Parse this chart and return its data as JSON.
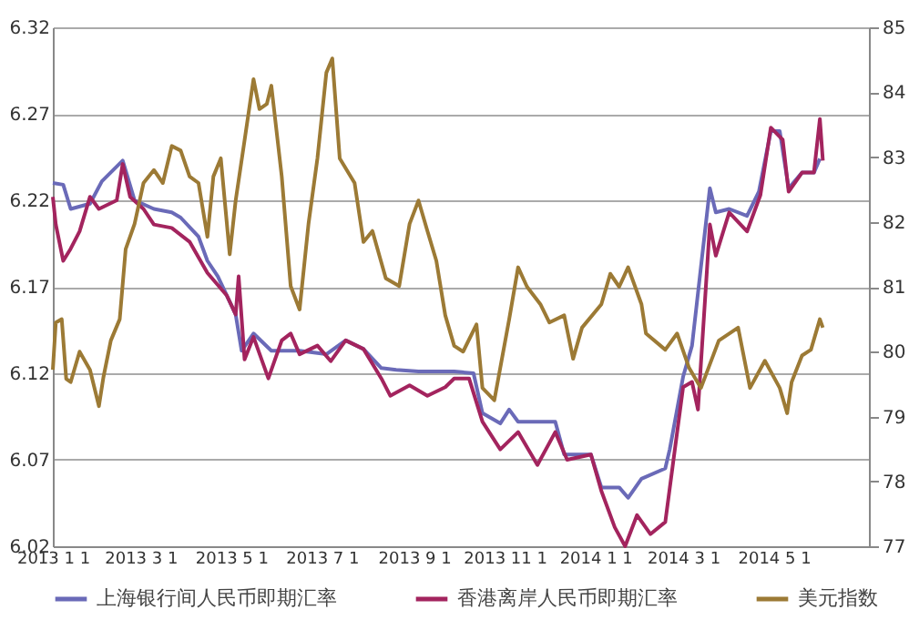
{
  "chart_data": {
    "type": "line",
    "xlim": [
      "2013-01-01",
      "2014-07-04"
    ],
    "xticks": [
      {
        "value": "2013-01-01",
        "label": "2013 1 1"
      },
      {
        "value": "2013-03-01",
        "label": "2013 3 1"
      },
      {
        "value": "2013-05-01",
        "label": "2013 5 1"
      },
      {
        "value": "2013-07-01",
        "label": "2013 7 1"
      },
      {
        "value": "2013-09-01",
        "label": "2013 9 1"
      },
      {
        "value": "2013-11-01",
        "label": "2013 11 1"
      },
      {
        "value": "2014-01-01",
        "label": "2014 1 1"
      },
      {
        "value": "2014-03-01",
        "label": "2014 3 1"
      },
      {
        "value": "2014-05-01",
        "label": "2014 5 1"
      }
    ],
    "ylim": [
      6.02,
      6.32
    ],
    "yticks": [
      6.02,
      6.07,
      6.12,
      6.17,
      6.22,
      6.27,
      6.32
    ],
    "y2lim": [
      77,
      85
    ],
    "y2ticks": [
      77,
      78,
      79,
      80,
      81,
      82,
      83,
      84,
      85
    ],
    "grid": "y",
    "legend": "bottom",
    "line_style": "solid",
    "marker": "none",
    "series": [
      {
        "name": "上海银行间人民币即期汇率",
        "color": "#6a6ab8",
        "x": [
          "2013-01-01",
          "2013-01-08",
          "2013-01-13",
          "2013-01-26",
          "2013-02-03",
          "2013-02-17",
          "2013-02-25",
          "2013-03-10",
          "2013-03-22",
          "2013-03-28",
          "2013-04-09",
          "2013-04-15",
          "2013-04-22",
          "2013-05-04",
          "2013-05-08",
          "2013-05-16",
          "2013-05-28",
          "2013-06-16",
          "2013-07-04",
          "2013-07-17",
          "2013-07-29",
          "2013-08-10",
          "2013-08-20",
          "2013-09-04",
          "2013-09-28",
          "2013-10-11",
          "2013-10-17",
          "2013-10-29",
          "2013-11-04",
          "2013-11-10",
          "2013-11-29",
          "2013-12-05",
          "2013-12-11",
          "2013-12-29",
          "2014-01-05",
          "2014-01-17",
          "2014-01-23",
          "2014-02-01",
          "2014-02-17",
          "2014-02-20",
          "2014-03-01",
          "2014-03-07",
          "2014-03-19",
          "2014-03-23",
          "2014-04-01",
          "2014-04-13",
          "2014-04-21",
          "2014-04-29",
          "2014-05-05",
          "2014-05-11",
          "2014-05-20",
          "2014-05-28",
          "2014-06-01"
        ],
        "values": [
          6.23,
          6.229,
          6.215,
          6.218,
          6.231,
          6.243,
          6.22,
          6.215,
          6.213,
          6.21,
          6.199,
          6.185,
          6.176,
          6.154,
          6.133,
          6.143,
          6.133,
          6.133,
          6.131,
          6.139,
          6.134,
          6.123,
          6.122,
          6.121,
          6.121,
          6.12,
          6.097,
          6.091,
          6.099,
          6.092,
          6.092,
          6.092,
          6.073,
          6.073,
          6.054,
          6.054,
          6.048,
          6.059,
          6.065,
          6.076,
          6.118,
          6.136,
          6.227,
          6.213,
          6.215,
          6.211,
          6.225,
          6.26,
          6.26,
          6.227,
          6.236,
          6.236,
          6.244
        ]
      },
      {
        "name": "香港离岸人民币即期汇率",
        "color": "#a3245e",
        "x": [
          "2013-01-01",
          "2013-01-03",
          "2013-01-08",
          "2013-01-13",
          "2013-01-19",
          "2013-01-26",
          "2013-02-01",
          "2013-02-13",
          "2013-02-17",
          "2013-02-22",
          "2013-03-03",
          "2013-03-10",
          "2013-03-22",
          "2013-04-03",
          "2013-04-15",
          "2013-04-28",
          "2013-05-04",
          "2013-05-06",
          "2013-05-10",
          "2013-05-16",
          "2013-05-26",
          "2013-06-04",
          "2013-06-10",
          "2013-06-16",
          "2013-06-28",
          "2013-07-07",
          "2013-07-17",
          "2013-07-29",
          "2013-08-10",
          "2013-08-16",
          "2013-08-29",
          "2013-09-10",
          "2013-09-22",
          "2013-09-28",
          "2013-10-08",
          "2013-10-17",
          "2013-10-29",
          "2013-11-10",
          "2013-11-23",
          "2013-12-05",
          "2013-12-13",
          "2013-12-29",
          "2014-01-05",
          "2014-01-14",
          "2014-01-21",
          "2014-01-29",
          "2014-02-07",
          "2014-02-17",
          "2014-02-23",
          "2014-03-01",
          "2014-03-07",
          "2014-03-11",
          "2014-03-19",
          "2014-03-23",
          "2014-04-01",
          "2014-04-13",
          "2014-04-22",
          "2014-04-29",
          "2014-05-07",
          "2014-05-11",
          "2014-05-20",
          "2014-05-28",
          "2014-06-01",
          "2014-06-03"
        ],
        "values": [
          6.222,
          6.206,
          6.185,
          6.192,
          6.202,
          6.222,
          6.215,
          6.22,
          6.241,
          6.222,
          6.215,
          6.206,
          6.204,
          6.196,
          6.178,
          6.165,
          6.154,
          6.176,
          6.128,
          6.141,
          6.117,
          6.139,
          6.143,
          6.131,
          6.136,
          6.127,
          6.139,
          6.134,
          6.117,
          6.107,
          6.113,
          6.107,
          6.112,
          6.117,
          6.117,
          6.092,
          6.076,
          6.086,
          6.067,
          6.086,
          6.07,
          6.073,
          6.052,
          6.031,
          6.02,
          6.038,
          6.027,
          6.034,
          6.073,
          6.112,
          6.115,
          6.099,
          6.206,
          6.188,
          6.213,
          6.202,
          6.223,
          6.262,
          6.255,
          6.225,
          6.236,
          6.236,
          6.267,
          6.243
        ]
      },
      {
        "name": "美元指数",
        "color": "#9c7a35",
        "axis": "y2",
        "x": [
          "2013-01-01",
          "2013-01-03",
          "2013-01-07",
          "2013-01-10",
          "2013-01-13",
          "2013-01-19",
          "2013-01-26",
          "2013-02-01",
          "2013-02-04",
          "2013-02-09",
          "2013-02-15",
          "2013-02-19",
          "2013-02-25",
          "2013-03-03",
          "2013-03-10",
          "2013-03-16",
          "2013-03-22",
          "2013-03-28",
          "2013-04-03",
          "2013-04-09",
          "2013-04-15",
          "2013-04-19",
          "2013-04-24",
          "2013-04-30",
          "2013-05-04",
          "2013-05-10",
          "2013-05-16",
          "2013-05-20",
          "2013-05-25",
          "2013-05-28",
          "2013-06-04",
          "2013-06-10",
          "2013-06-16",
          "2013-06-22",
          "2013-06-28",
          "2013-07-04",
          "2013-07-08",
          "2013-07-13",
          "2013-07-23",
          "2013-07-29",
          "2013-08-04",
          "2013-08-13",
          "2013-08-22",
          "2013-08-29",
          "2013-09-04",
          "2013-09-10",
          "2013-09-16",
          "2013-09-22",
          "2013-09-28",
          "2013-10-04",
          "2013-10-13",
          "2013-10-17",
          "2013-10-25",
          "2013-11-04",
          "2013-11-10",
          "2013-11-16",
          "2013-11-25",
          "2013-12-01",
          "2013-12-11",
          "2013-12-17",
          "2013-12-23",
          "2014-01-05",
          "2014-01-11",
          "2014-01-17",
          "2014-01-23",
          "2014-02-01",
          "2014-02-04",
          "2014-02-17",
          "2014-02-25",
          "2014-03-05",
          "2014-03-13",
          "2014-03-25",
          "2014-04-07",
          "2014-04-15",
          "2014-04-25",
          "2014-05-05",
          "2014-05-10",
          "2014-05-13",
          "2014-05-20",
          "2014-05-26",
          "2014-06-01",
          "2014-06-03"
        ],
        "values": [
          79.72,
          80.45,
          80.5,
          79.58,
          79.53,
          80.0,
          79.72,
          79.16,
          79.6,
          80.17,
          80.5,
          81.58,
          81.97,
          82.6,
          82.8,
          82.6,
          83.17,
          83.1,
          82.7,
          82.6,
          81.77,
          82.7,
          82.98,
          81.5,
          82.33,
          83.26,
          84.2,
          83.74,
          83.82,
          84.1,
          82.7,
          81.01,
          80.65,
          81.97,
          82.98,
          84.3,
          84.52,
          82.98,
          82.6,
          81.69,
          81.86,
          81.13,
          81.01,
          81.97,
          82.33,
          81.86,
          81.4,
          80.56,
          80.09,
          80.0,
          80.42,
          79.44,
          79.25,
          80.5,
          81.3,
          81.0,
          80.73,
          80.45,
          80.56,
          79.89,
          80.37,
          80.73,
          81.2,
          81.0,
          81.3,
          80.73,
          80.28,
          80.03,
          80.28,
          79.75,
          79.44,
          80.17,
          80.37,
          79.44,
          79.86,
          79.44,
          79.05,
          79.53,
          79.94,
          80.03,
          80.5,
          80.37
        ]
      }
    ]
  }
}
